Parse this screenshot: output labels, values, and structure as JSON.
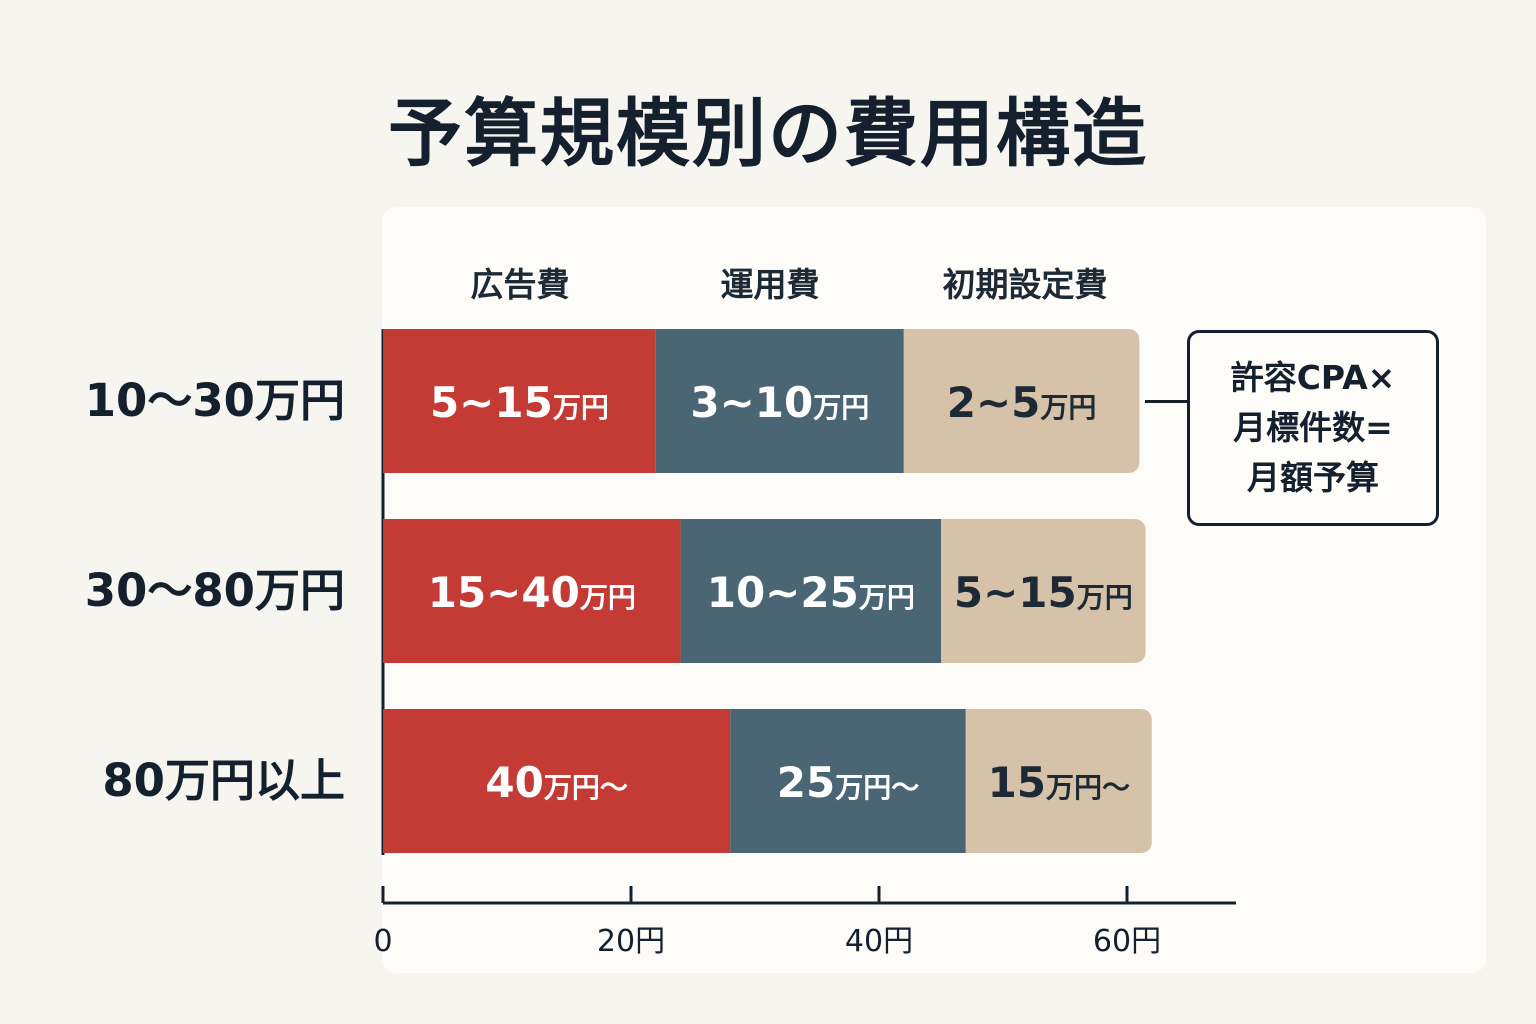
{
  "title": "予算規模別の費用構造",
  "chart_data": {
    "type": "bar",
    "orientation": "horizontal",
    "stacked": true,
    "categories": [
      "10〜30万円",
      "30〜80万円",
      "80万円以上"
    ],
    "series": [
      {
        "name": "広告費",
        "color": "#c43b35",
        "values": [
          22,
          24,
          28
        ],
        "labels": [
          "5~15",
          "15~40",
          "40"
        ],
        "suffixes": [
          "万円",
          "万円",
          "万円〜"
        ]
      },
      {
        "name": "運用費",
        "color": "#4a6674",
        "values": [
          20,
          21,
          19
        ],
        "labels": [
          "3~10",
          "10~25",
          "25"
        ],
        "suffixes": [
          "万円",
          "万円",
          "万円〜"
        ]
      },
      {
        "name": "初期設定費",
        "color": "#d6c2a9",
        "values": [
          19,
          16.5,
          15
        ],
        "labels": [
          "2~5",
          "5~15",
          "15"
        ],
        "suffixes": [
          "万円",
          "万円",
          "万円〜"
        ]
      }
    ],
    "xlim": [
      0,
      69
    ],
    "xticks": [
      0,
      20,
      40,
      60
    ],
    "xtick_labels": [
      "0",
      "20円",
      "40円",
      "60円"
    ],
    "legend_placement": "top",
    "grid": false
  },
  "note": {
    "lines": [
      "許容CPA×",
      "月標件数=",
      "月額予算"
    ]
  },
  "colors": {
    "ad": "#c43b35",
    "operation": "#4a6674",
    "setup": "#d6c2a9",
    "text_dark": "#14202e",
    "background": "#f7f5f0",
    "panel": "#fdfcf8"
  }
}
